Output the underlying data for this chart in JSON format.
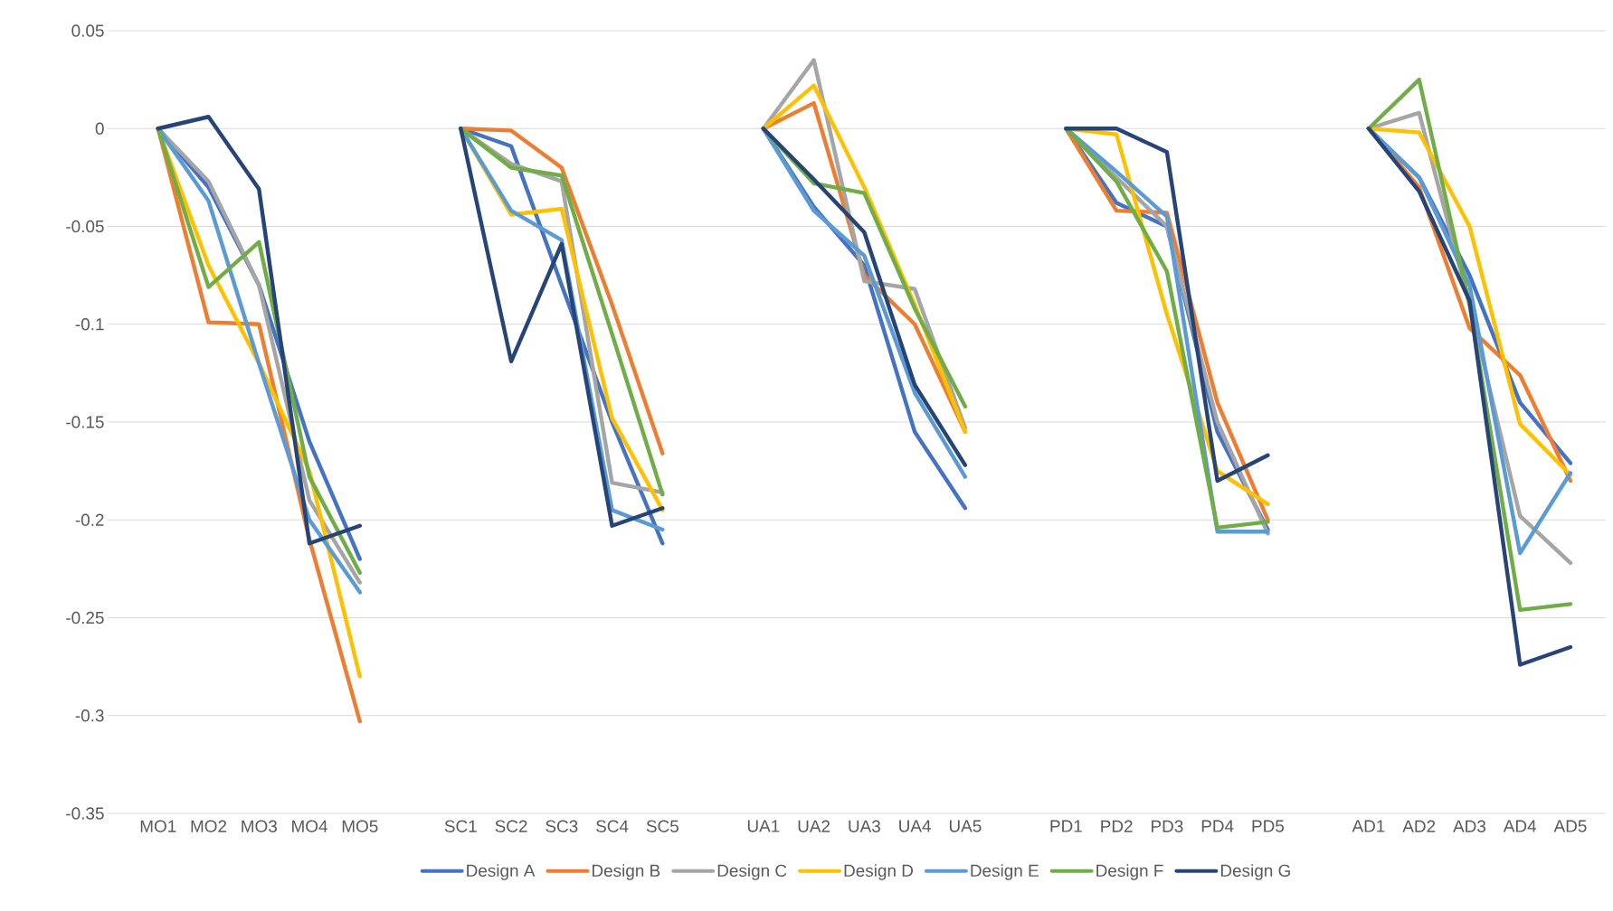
{
  "chart_data": {
    "type": "line",
    "categories": [
      "MO1",
      "MO2",
      "MO3",
      "MO4",
      "MO5",
      null,
      "SC1",
      "SC2",
      "SC3",
      "SC4",
      "SC5",
      null,
      "UA1",
      "UA2",
      "UA3",
      "UA4",
      "UA5",
      null,
      "PD1",
      "PD2",
      "PD3",
      "PD4",
      "PD5",
      null,
      "AD1",
      "AD2",
      "AD3",
      "AD4",
      "AD5"
    ],
    "ylim": [
      -0.35,
      0.05
    ],
    "yticks": [
      0.05,
      0,
      -0.05,
      -0.1,
      -0.15,
      -0.2,
      -0.25,
      -0.3,
      -0.35
    ],
    "grid": "y",
    "legend": "bottom",
    "marker": "none",
    "line_style": "solid",
    "series": [
      {
        "name": "Design A",
        "color": "#4472c4",
        "values": [
          0,
          -0.03,
          -0.08,
          -0.16,
          -0.22,
          null,
          0,
          -0.009,
          -0.08,
          -0.15,
          -0.212,
          null,
          0,
          -0.04,
          -0.07,
          -0.155,
          -0.194,
          null,
          0,
          -0.038,
          -0.05,
          -0.155,
          -0.205,
          null,
          0,
          -0.025,
          -0.075,
          -0.14,
          -0.171
        ]
      },
      {
        "name": "Design B",
        "color": "#ed7d31",
        "values": [
          0,
          -0.099,
          -0.1,
          -0.21,
          -0.303,
          null,
          0,
          -0.001,
          -0.02,
          -0.09,
          -0.166,
          null,
          0,
          0.013,
          -0.075,
          -0.1,
          -0.155,
          null,
          0,
          -0.042,
          -0.043,
          -0.14,
          -0.2,
          null,
          0,
          -0.03,
          -0.102,
          -0.126,
          -0.18
        ]
      },
      {
        "name": "Design C",
        "color": "#a5a5a5",
        "values": [
          0,
          -0.027,
          -0.08,
          -0.19,
          -0.232,
          null,
          0,
          -0.018,
          -0.027,
          -0.181,
          -0.186,
          null,
          0,
          0.035,
          -0.078,
          -0.082,
          -0.153,
          null,
          0,
          -0.025,
          -0.05,
          -0.15,
          -0.207,
          null,
          0,
          0.008,
          -0.09,
          -0.198,
          -0.222
        ]
      },
      {
        "name": "Design D",
        "color": "#ffc000",
        "values": [
          0,
          -0.07,
          -0.12,
          -0.175,
          -0.28,
          null,
          0,
          -0.044,
          -0.041,
          -0.148,
          -0.195,
          null,
          0,
          0.022,
          -0.03,
          -0.09,
          -0.155,
          null,
          0,
          -0.003,
          -0.095,
          -0.175,
          -0.192,
          null,
          0,
          -0.002,
          -0.05,
          -0.151,
          -0.177
        ]
      },
      {
        "name": "Design E",
        "color": "#5b9bd5",
        "values": [
          0,
          -0.037,
          -0.12,
          -0.2,
          -0.237,
          null,
          0,
          -0.042,
          -0.057,
          -0.195,
          -0.205,
          null,
          0,
          -0.042,
          -0.065,
          -0.135,
          -0.178,
          null,
          0,
          -0.022,
          -0.045,
          -0.206,
          -0.206,
          null,
          0,
          -0.025,
          -0.08,
          -0.217,
          -0.176
        ]
      },
      {
        "name": "Design F",
        "color": "#70ad47",
        "values": [
          0,
          -0.081,
          -0.058,
          -0.178,
          -0.227,
          null,
          0,
          -0.02,
          -0.024,
          -0.105,
          -0.187,
          null,
          0,
          -0.028,
          -0.033,
          -0.092,
          -0.142,
          null,
          0,
          -0.027,
          -0.073,
          -0.204,
          -0.201,
          null,
          0,
          0.025,
          -0.09,
          -0.246,
          -0.243
        ]
      },
      {
        "name": "Design G",
        "color": "#264478",
        "values": [
          0,
          0.006,
          -0.031,
          -0.212,
          -0.203,
          null,
          0,
          -0.119,
          -0.059,
          -0.203,
          -0.194,
          null,
          0,
          -0.026,
          -0.053,
          -0.131,
          -0.172,
          null,
          0,
          0.0,
          -0.012,
          -0.18,
          -0.167,
          null,
          0,
          -0.032,
          -0.088,
          -0.274,
          -0.265
        ]
      }
    ]
  }
}
